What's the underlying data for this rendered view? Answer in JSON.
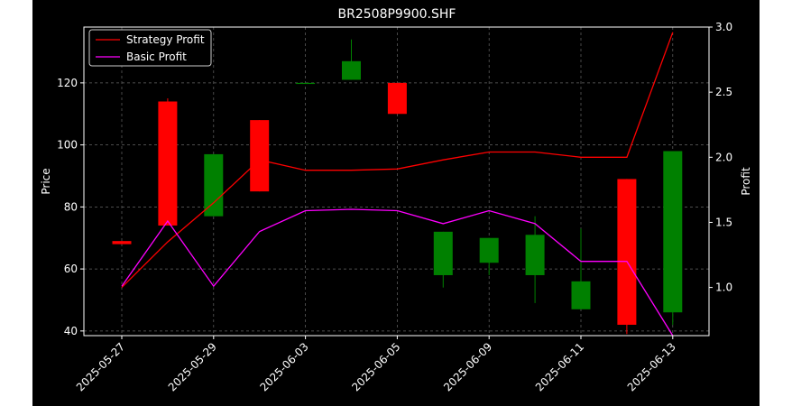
{
  "chart_data": {
    "type": "candlestick",
    "title": "BR2508P9900.SHF",
    "ylabel_left": "Price",
    "ylabel_right": "Profit",
    "xlabel": "",
    "grid": true,
    "legend_position": "top-left",
    "ylim_left": [
      38.5,
      138
    ],
    "ylim_right": [
      0.63,
      3.0
    ],
    "yticks_left": [
      40,
      60,
      80,
      100,
      120
    ],
    "yticks_right": [
      1.0,
      1.5,
      2.0,
      2.5,
      3.0
    ],
    "ytick_labels_right": [
      "1.0",
      "1.5",
      "2.0",
      "2.5",
      "3.0"
    ],
    "xtick_labels": [
      "2025-05-27",
      "2025-05-29",
      "2025-06-03",
      "2025-06-05",
      "2025-06-09",
      "2025-06-11",
      "2025-06-13"
    ],
    "xtick_index": [
      0,
      2,
      4,
      6,
      8,
      10,
      12
    ],
    "candles": [
      {
        "open": 69,
        "close": 68,
        "high": 69,
        "low": 68
      },
      {
        "open": 114,
        "close": 74,
        "high": 115,
        "low": 74
      },
      {
        "open": 77,
        "close": 97,
        "high": 97,
        "low": 77
      },
      {
        "open": 108,
        "close": 85,
        "high": 108,
        "low": 85
      },
      {
        "open": 120,
        "close": 120,
        "high": 120,
        "low": 120
      },
      {
        "open": 121,
        "close": 127,
        "high": 134,
        "low": 121
      },
      {
        "open": 120,
        "close": 110,
        "high": 120,
        "low": 110
      },
      {
        "open": 58,
        "close": 72,
        "high": 72,
        "low": 54
      },
      {
        "open": 62,
        "close": 70,
        "high": 70,
        "low": 58
      },
      {
        "open": 58,
        "close": 71,
        "high": 77,
        "low": 49
      },
      {
        "open": 47,
        "close": 56,
        "high": 73,
        "low": 47
      },
      {
        "open": 89,
        "close": 42,
        "high": 89,
        "low": 39
      },
      {
        "open": 46,
        "close": 98,
        "high": 98,
        "low": 42
      }
    ],
    "series": [
      {
        "name": "Strategy Profit",
        "color": "#ff0000",
        "axis": "right",
        "values": [
          1.0,
          1.35,
          1.65,
          1.98,
          1.9,
          1.9,
          1.91,
          1.98,
          2.04,
          2.04,
          2.0,
          2.0,
          2.96
        ]
      },
      {
        "name": "Basic Profit",
        "color": "#ff00ff",
        "axis": "right",
        "values": [
          1.01,
          1.51,
          1.01,
          1.43,
          1.59,
          1.6,
          1.59,
          1.49,
          1.59,
          1.49,
          1.2,
          1.2,
          0.63
        ]
      }
    ],
    "up_color": "#008000",
    "down_color": "#ff0000"
  }
}
